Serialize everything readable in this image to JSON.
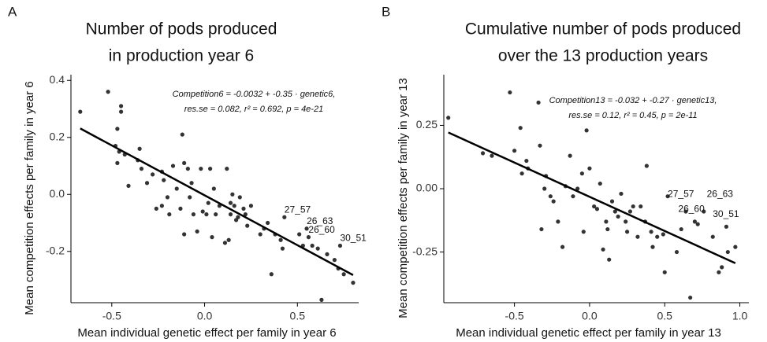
{
  "chart_data": [
    {
      "type": "scatter",
      "panel": "A",
      "title": [
        "Number of pods produced",
        "in production year 6"
      ],
      "x_label": "Mean individual genetic effect per family in year 6",
      "y_label": "Mean competition effects per family in year 6",
      "equation": [
        "Competition6 = -0.0032 + -0.35 · genetic6,",
        "res.se = 0.082,  r² = 0.692,  p = 4e-21"
      ],
      "fit": {
        "intercept": -0.0032,
        "slope": -0.35
      },
      "color": "#333333",
      "xlim": [
        -0.72,
        0.83
      ],
      "ylim": [
        -0.38,
        0.42
      ],
      "xticks": [
        {
          "value": -0.5,
          "label": "-0.5"
        },
        {
          "value": 0,
          "label": "0.0"
        },
        {
          "value": 0.5,
          "label": "0.5"
        }
      ],
      "yticks": [
        {
          "value": -0.2,
          "label": "-0.2"
        },
        {
          "value": 0,
          "label": "0.0"
        },
        {
          "value": 0.2,
          "label": "0.2"
        },
        {
          "value": 0.4,
          "label": "0.4"
        }
      ],
      "x": [
        -0.67,
        -0.52,
        -0.45,
        -0.45,
        -0.47,
        -0.48,
        -0.46,
        -0.43,
        -0.47,
        -0.41,
        -0.35,
        -0.36,
        -0.34,
        -0.31,
        -0.28,
        -0.23,
        -0.22,
        -0.26,
        -0.23,
        -0.2,
        -0.19,
        -0.17,
        -0.15,
        -0.13,
        -0.11,
        -0.12,
        -0.09,
        -0.11,
        -0.08,
        -0.06,
        -0.07,
        -0.04,
        -0.02,
        -0.01,
        0.01,
        0.02,
        0.03,
        0.04,
        0.05,
        0.06,
        0.08,
        0.11,
        0.12,
        0.13,
        0.14,
        0.14,
        0.15,
        0.16,
        0.17,
        0.18,
        0.19,
        0.21,
        0.22,
        0.23,
        0.25,
        0.3,
        0.32,
        0.34,
        0.36,
        0.38,
        0.41,
        0.42,
        0.43,
        0.51,
        0.53,
        0.55,
        0.56,
        0.58,
        0.61,
        0.63,
        0.66,
        0.7,
        0.72,
        0.75,
        0.8,
        0.73
      ],
      "y": [
        0.29,
        0.36,
        0.31,
        0.29,
        0.23,
        0.17,
        0.15,
        0.14,
        0.11,
        0.03,
        0.16,
        0.12,
        0.09,
        0.04,
        0.07,
        0.08,
        0.05,
        -0.05,
        -0.04,
        -0.01,
        -0.07,
        0.1,
        0.02,
        -0.05,
        0.11,
        0.21,
        0.09,
        -0.14,
        -0.01,
        -0.07,
        0.04,
        -0.13,
        0.09,
        -0.06,
        -0.07,
        -0.03,
        0.09,
        -0.15,
        0.02,
        -0.07,
        -0.04,
        -0.17,
        0.09,
        -0.16,
        -0.03,
        -0.07,
        0.0,
        -0.04,
        -0.09,
        -0.08,
        -0.01,
        -0.05,
        -0.07,
        -0.11,
        -0.04,
        -0.14,
        -0.12,
        -0.1,
        -0.28,
        -0.14,
        -0.16,
        -0.19,
        -0.08,
        -0.14,
        -0.18,
        -0.12,
        -0.15,
        -0.18,
        -0.19,
        -0.37,
        -0.21,
        -0.23,
        -0.26,
        -0.28,
        -0.31,
        -0.18
      ],
      "annotations": [
        {
          "text": "27_57",
          "x": 0.43,
          "y": -0.08
        },
        {
          "text": "26_63",
          "x": 0.55,
          "y": -0.12
        },
        {
          "text": "26_60",
          "x": 0.56,
          "y": -0.15
        },
        {
          "text": "30_51",
          "x": 0.73,
          "y": -0.18
        }
      ]
    },
    {
      "type": "scatter",
      "panel": "B",
      "title": [
        "Cumulative number of pods produced",
        "over the 13 production years"
      ],
      "x_label": "Mean individual genetic effect per family in year 13",
      "y_label": "Mean competition effects per family in year 13",
      "equation": [
        "Competition13 = -0.032 + -0.27 · genetic13,",
        "res.se = 0.12,  r² = 0.45,  p = 2e-11"
      ],
      "fit": {
        "intercept": -0.032,
        "slope": -0.27
      },
      "color": "#333333",
      "xlim": [
        -0.97,
        1.06
      ],
      "ylim": [
        -0.45,
        0.45
      ],
      "xticks": [
        {
          "value": -0.5,
          "label": "-0.5"
        },
        {
          "value": 0,
          "label": "0.0"
        },
        {
          "value": 0.5,
          "label": "0.5"
        },
        {
          "value": 1,
          "label": "1.0"
        }
      ],
      "yticks": [
        {
          "value": -0.25,
          "label": "-0.25"
        },
        {
          "value": 0,
          "label": "0.00"
        },
        {
          "value": 0.25,
          "label": "0.25"
        }
      ],
      "x": [
        -0.94,
        -0.71,
        -0.65,
        -0.53,
        -0.5,
        -0.46,
        -0.45,
        -0.42,
        -0.41,
        -0.34,
        -0.33,
        -0.3,
        -0.32,
        -0.29,
        -0.26,
        -0.24,
        -0.21,
        -0.18,
        -0.16,
        -0.13,
        -0.11,
        -0.08,
        -0.05,
        -0.04,
        -0.02,
        0.0,
        0.03,
        0.05,
        0.07,
        0.09,
        0.11,
        0.12,
        0.13,
        0.15,
        0.17,
        0.19,
        0.21,
        0.24,
        0.25,
        0.27,
        0.29,
        0.32,
        0.34,
        0.37,
        0.38,
        0.41,
        0.42,
        0.45,
        0.49,
        0.5,
        0.52,
        0.58,
        0.61,
        0.64,
        0.67,
        0.7,
        0.72,
        0.76,
        0.82,
        0.86,
        0.88,
        0.91,
        0.92,
        0.97
      ],
      "y": [
        0.28,
        0.14,
        0.13,
        0.38,
        0.15,
        0.24,
        0.06,
        0.11,
        0.08,
        0.34,
        0.17,
        0.0,
        -0.16,
        0.05,
        -0.03,
        -0.05,
        -0.13,
        -0.23,
        0.01,
        0.13,
        -0.03,
        0.0,
        0.06,
        -0.17,
        0.23,
        0.08,
        -0.07,
        -0.08,
        0.02,
        -0.24,
        -0.13,
        -0.16,
        -0.28,
        -0.05,
        -0.09,
        -0.11,
        -0.02,
        -0.13,
        -0.17,
        -0.09,
        -0.07,
        -0.19,
        -0.07,
        -0.13,
        0.09,
        -0.17,
        -0.23,
        -0.19,
        -0.18,
        -0.33,
        -0.03,
        -0.25,
        -0.16,
        -0.09,
        -0.43,
        -0.13,
        -0.14,
        -0.09,
        -0.19,
        -0.33,
        -0.31,
        -0.15,
        -0.25,
        -0.23
      ],
      "annotations": [
        {
          "text": "27_57",
          "x": 0.52,
          "y": -0.05
        },
        {
          "text": "26_63",
          "x": 0.78,
          "y": -0.05
        },
        {
          "text": "26_60",
          "x": 0.59,
          "y": -0.11
        },
        {
          "text": "30_51",
          "x": 0.82,
          "y": -0.13
        }
      ]
    }
  ]
}
